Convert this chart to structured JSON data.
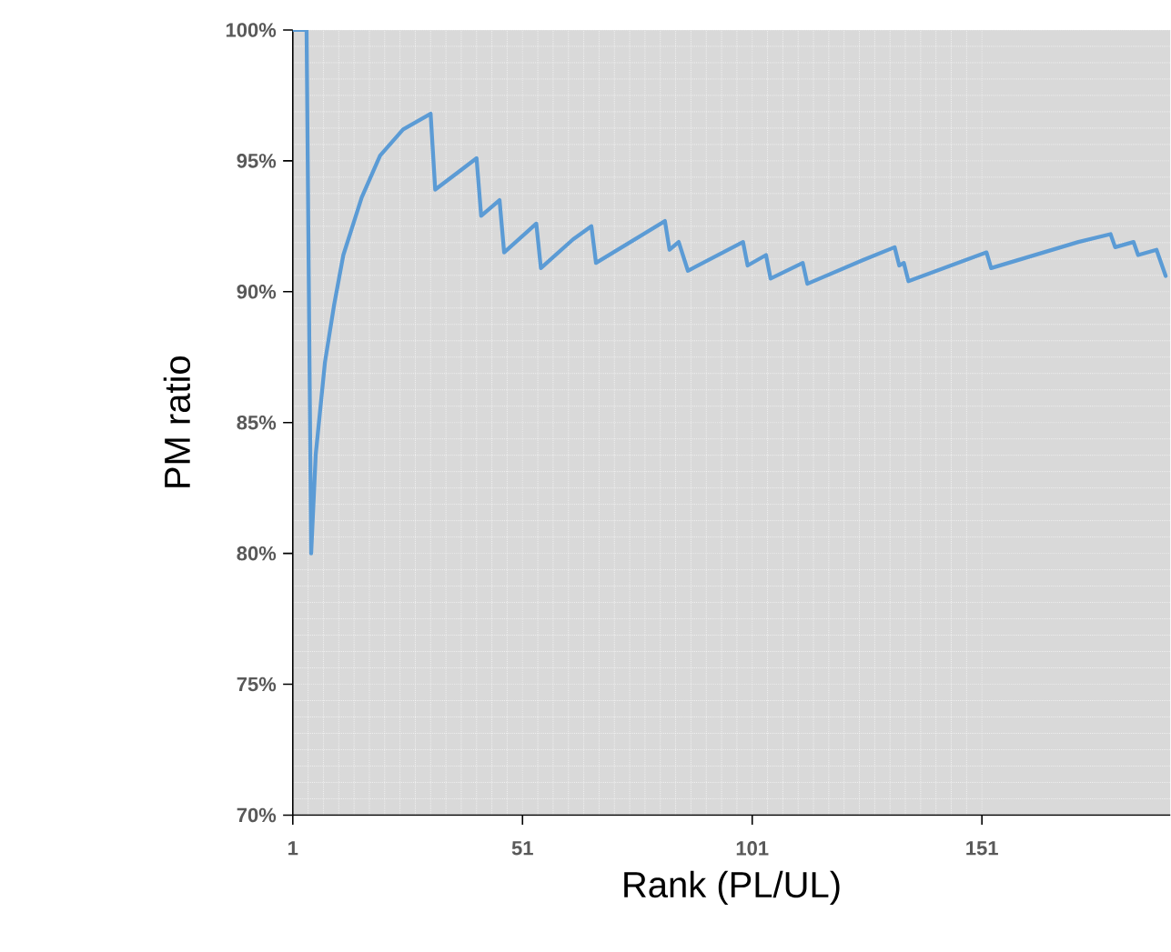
{
  "chart_data": {
    "type": "line",
    "xlabel": "Rank (PL/UL)",
    "ylabel": "PM ratio",
    "x": [
      1,
      4,
      5,
      6,
      8,
      10,
      12,
      16,
      20,
      25,
      31,
      32,
      41,
      42,
      46,
      47,
      54,
      55,
      62,
      66,
      67,
      75,
      82,
      83,
      85,
      87,
      99,
      100,
      104,
      105,
      112,
      113,
      125,
      132,
      133,
      134,
      135,
      152,
      153,
      172,
      179,
      180,
      184,
      185,
      189,
      191
    ],
    "series": [
      {
        "color": "#5b9bd5",
        "values": [
          100,
          100,
          80,
          83.8,
          87.3,
          89.5,
          91.4,
          93.6,
          95.2,
          96.2,
          96.8,
          93.9,
          95.1,
          92.9,
          93.5,
          91.5,
          92.6,
          90.9,
          92.0,
          92.5,
          91.1,
          91.95,
          92.7,
          91.6,
          91.9,
          90.8,
          91.9,
          91.0,
          91.4,
          90.5,
          91.1,
          90.3,
          91.2,
          91.7,
          91.0,
          91.1,
          90.4,
          91.5,
          90.9,
          91.9,
          92.2,
          91.7,
          91.9,
          91.4,
          91.6,
          90.6
        ]
      }
    ],
    "xlim": [
      1,
      192
    ],
    "xticks": [
      1,
      51,
      101,
      151
    ],
    "ylim": [
      70,
      100
    ],
    "yticks": [
      {
        "value": 70,
        "label": "70%"
      },
      {
        "value": 75,
        "label": "75%"
      },
      {
        "value": 80,
        "label": "80%"
      },
      {
        "value": 85,
        "label": "85%"
      },
      {
        "value": 90,
        "label": "90%"
      },
      {
        "value": 95,
        "label": "95%"
      },
      {
        "value": 100,
        "label": "100%"
      }
    ],
    "grid": true,
    "line_style": "solid"
  }
}
